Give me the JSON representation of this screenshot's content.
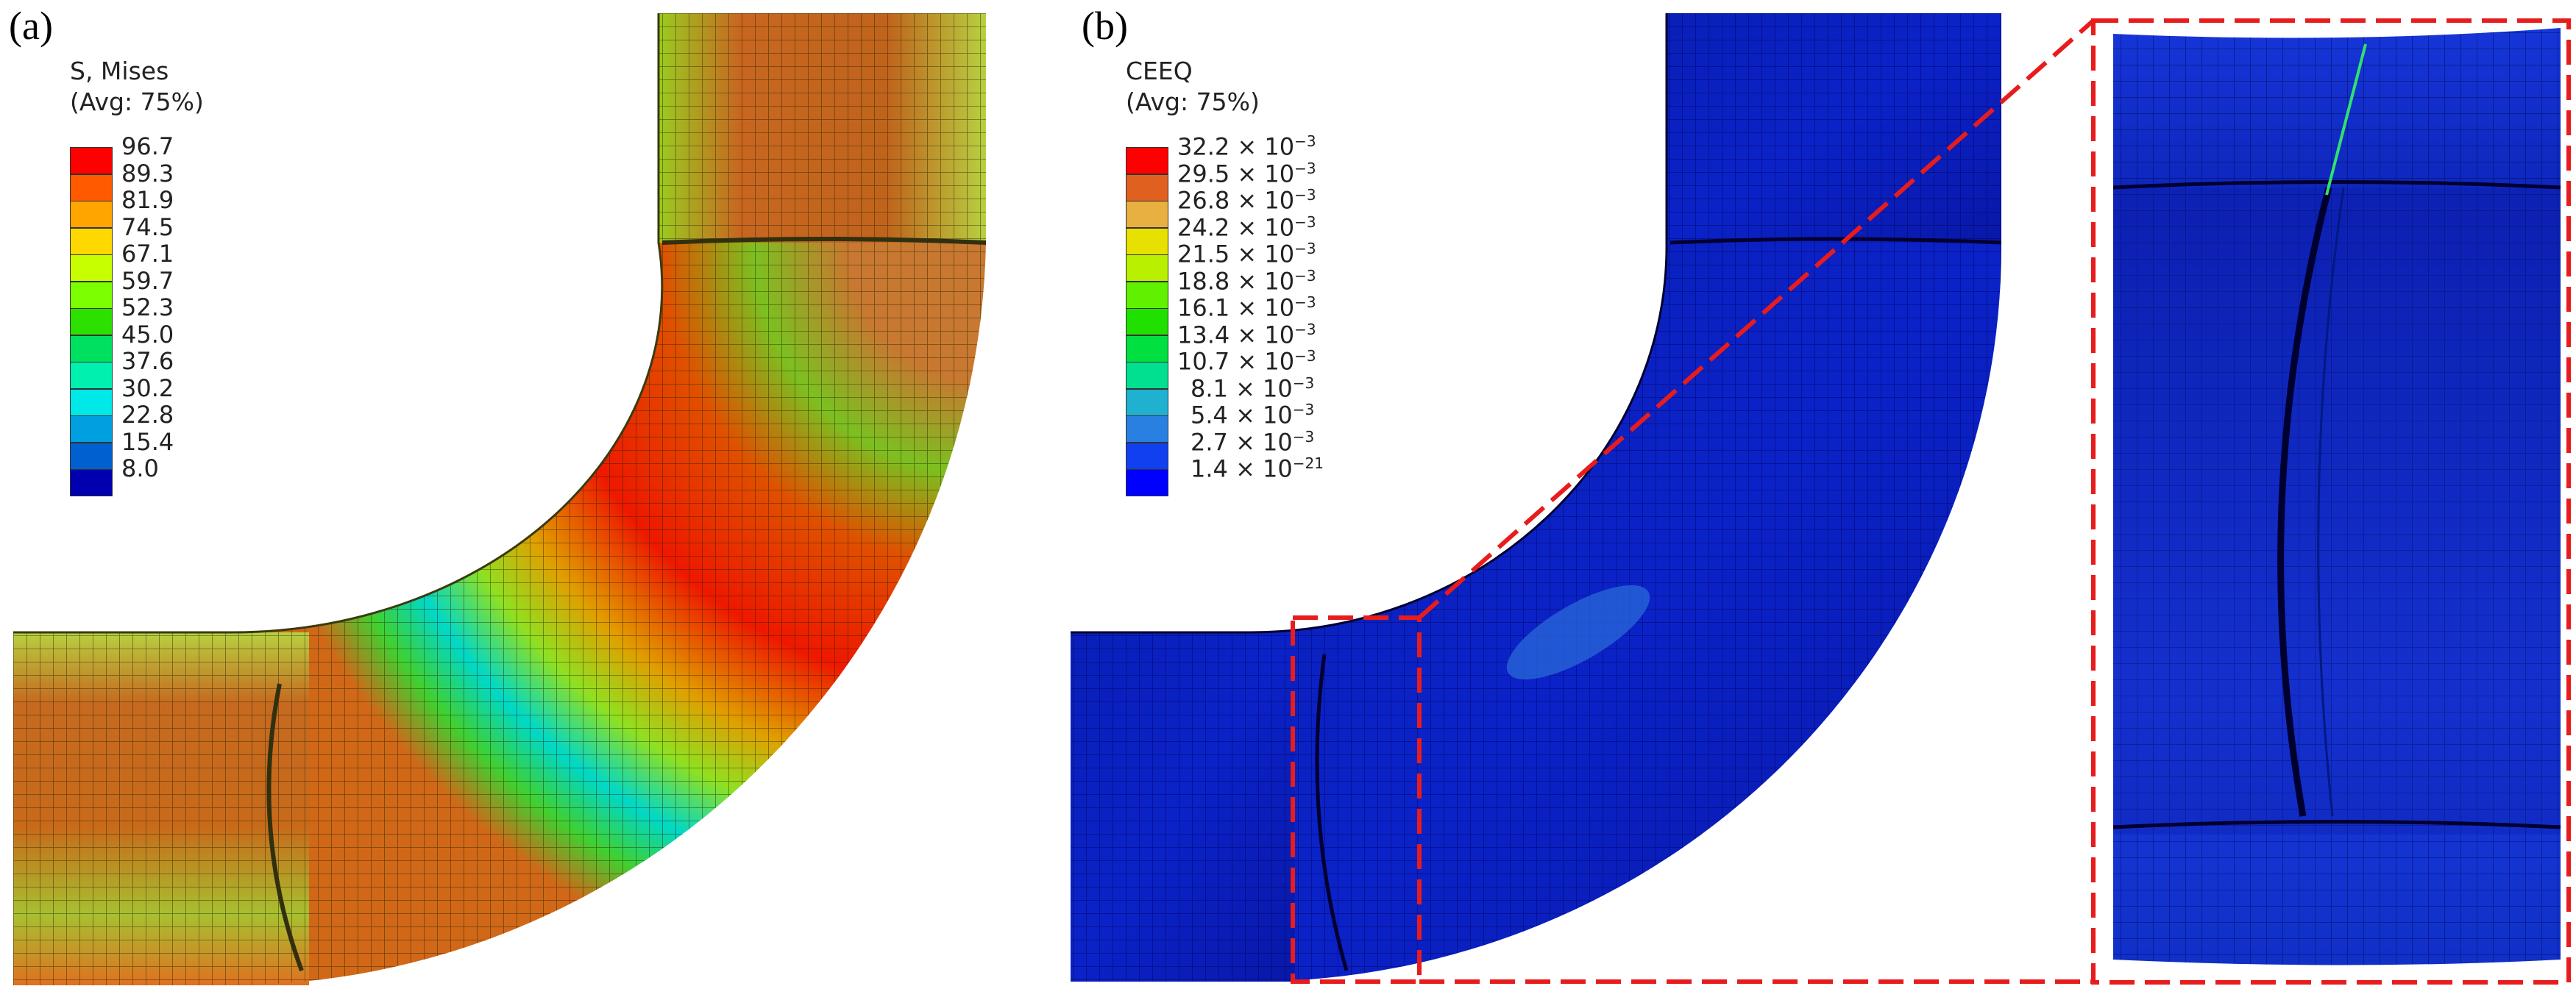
{
  "panels": [
    {
      "label": "(a)",
      "legend": {
        "title": "S, Mises",
        "subtitle": "(Avg: 75%)",
        "values": [
          "96.7",
          "89.3",
          "81.9",
          "74.5",
          "67.1",
          "59.7",
          "52.3",
          "45.0",
          "37.6",
          "30.2",
          "22.8",
          "15.4",
          "8.0"
        ],
        "colors": [
          "#ff0000",
          "#ff5a00",
          "#ffa500",
          "#ffd800",
          "#c8ff00",
          "#7cff00",
          "#2ce000",
          "#00e060",
          "#00f0b0",
          "#00e8e8",
          "#00a0e0",
          "#0060d0",
          "#0000b0"
        ]
      }
    },
    {
      "label": "(b)",
      "legend": {
        "title": "CEEQ",
        "subtitle": "(Avg: 75%)",
        "mantissas": [
          "32.2",
          "29.5",
          "26.8",
          "24.2",
          "21.5",
          "18.8",
          "16.1",
          "13.4",
          "10.7",
          "8.1",
          "5.4",
          "2.7",
          "1.4"
        ],
        "exponents": [
          "−3",
          "−3",
          "−3",
          "−3",
          "−3",
          "−3",
          "−3",
          "−3",
          "−3",
          "−3",
          "−3",
          "−3",
          "−21"
        ],
        "times": "×",
        "base": "10",
        "colors": [
          "#ff0000",
          "#e06020",
          "#e8b040",
          "#e8e000",
          "#b8f000",
          "#60f000",
          "#20e000",
          "#00e040",
          "#00e090",
          "#20b0d0",
          "#2a80e0",
          "#1040f0",
          "#0000ff"
        ]
      }
    }
  ]
}
